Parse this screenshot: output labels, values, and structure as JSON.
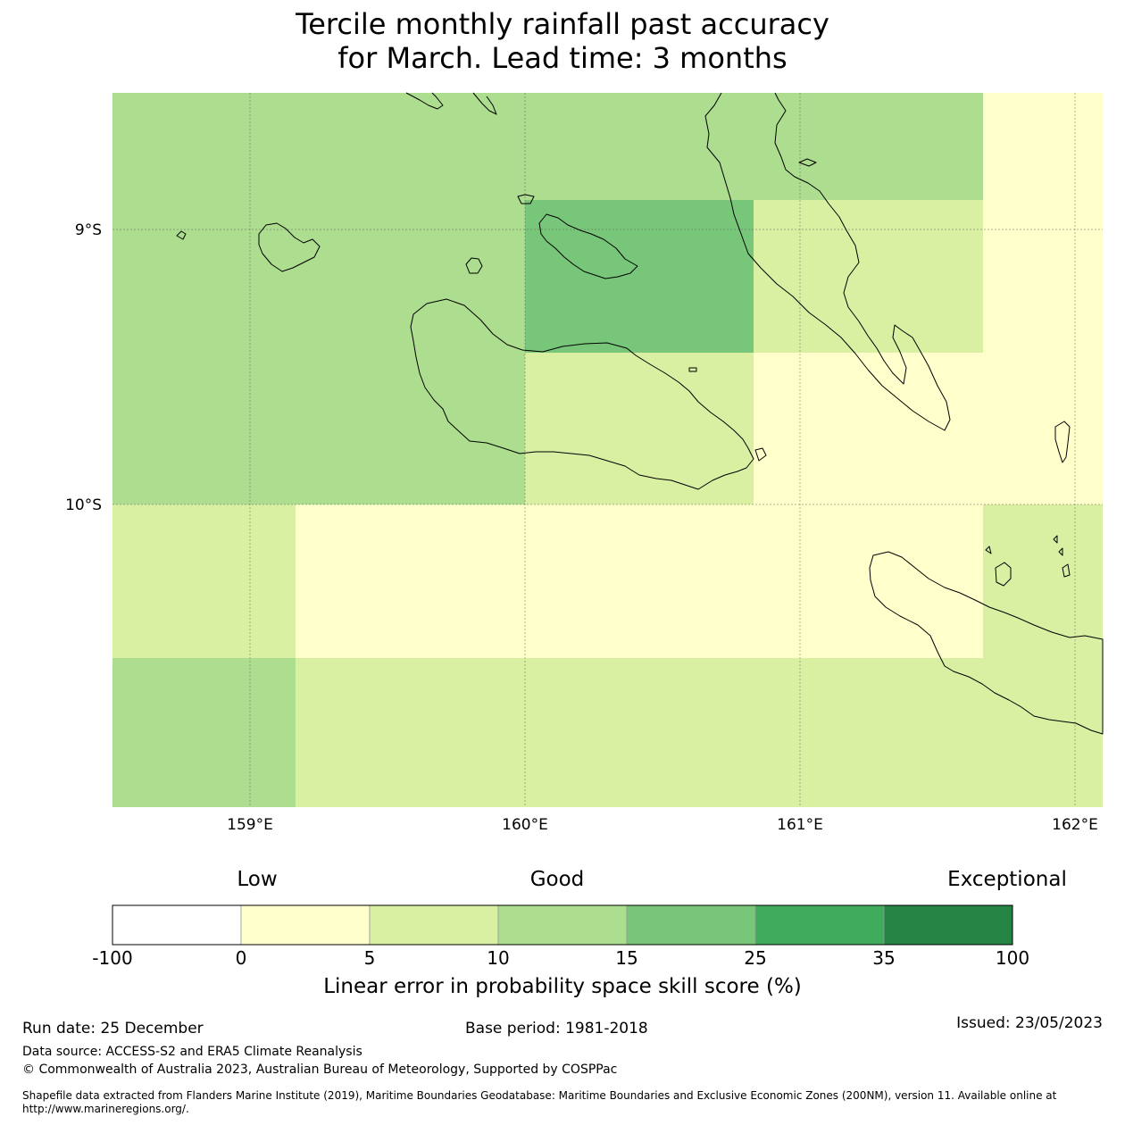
{
  "title": {
    "line1": "Tercile monthly rainfall past accuracy",
    "line2": "for March. Lead time: 3 months"
  },
  "map": {
    "lat_labels": [
      "9°S",
      "10°S"
    ],
    "lon_labels": [
      "159°E",
      "160°E",
      "161°E",
      "162°E"
    ]
  },
  "colorbar": {
    "words": {
      "low": "Low",
      "good": "Good",
      "exceptional": "Exceptional"
    },
    "ticks": [
      "-100",
      "0",
      "5",
      "10",
      "15",
      "25",
      "35",
      "100"
    ],
    "colors": [
      "#ffffff",
      "#ffffcc",
      "#d9f0a3",
      "#addd8e",
      "#78c679",
      "#41ab5d",
      "#238443"
    ],
    "label": "Linear error in probability space skill score (%)"
  },
  "footer": {
    "run_date": "Run date: 25 December",
    "base_period": "Base period: 1981-2018",
    "issued": "Issued: 23/05/2023",
    "data_source": "Data source: ACCESS-S2 and ERA5 Climate Reanalysis",
    "copyright": "© Commonwealth of Australia 2023, Australian Bureau of Meteorology, Supported by COSPPac",
    "shapefile_line1": "Shapefile data extracted from Flanders Marine Institute (2019), Maritime Boundaries Geodatabase: Maritime Boundaries and Exclusive Economic Zones (200NM), version 11. Available online at",
    "shapefile_line2": "http://www.marineregions.org/."
  }
}
